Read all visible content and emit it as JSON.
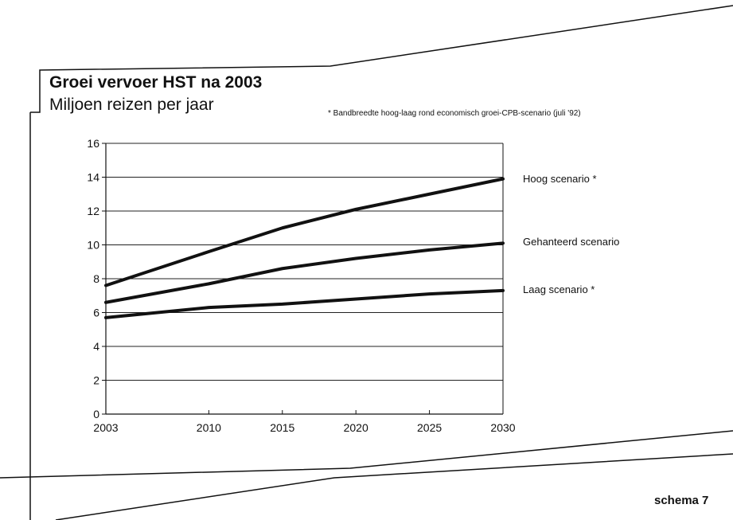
{
  "header": {
    "title": "Groei vervoer HST na 2003",
    "subtitle": "Miljoen reizen per jaar",
    "note": "*   Bandbreedte hoog-laag rond economisch groei-CPB-scenario (juli '92)"
  },
  "footer": {
    "label": "schema 7"
  },
  "chart_data": {
    "type": "line",
    "title": "Groei vervoer HST na 2003",
    "subtitle": "Miljoen reizen per jaar",
    "x": [
      2003,
      2010,
      2015,
      2020,
      2025,
      2030
    ],
    "x_tick_labels": [
      "2003",
      "2010",
      "2015",
      "2020",
      "2025",
      "2030"
    ],
    "y_tick_labels": [
      "0",
      "2",
      "4",
      "6",
      "8",
      "10",
      "12",
      "14",
      "16"
    ],
    "xlim": [
      2003,
      2030
    ],
    "ylim": [
      0,
      16
    ],
    "grid": "horizontal",
    "legend": "right",
    "series": [
      {
        "name": "Hoog scenario *",
        "values": [
          7.6,
          9.6,
          11.0,
          12.1,
          13.0,
          13.9
        ]
      },
      {
        "name": "Gehanteerd scenario",
        "values": [
          6.6,
          7.7,
          8.6,
          9.2,
          9.7,
          10.1
        ]
      },
      {
        "name": "Laag scenario *",
        "values": [
          5.7,
          6.3,
          6.5,
          6.8,
          7.1,
          7.3
        ]
      }
    ]
  }
}
